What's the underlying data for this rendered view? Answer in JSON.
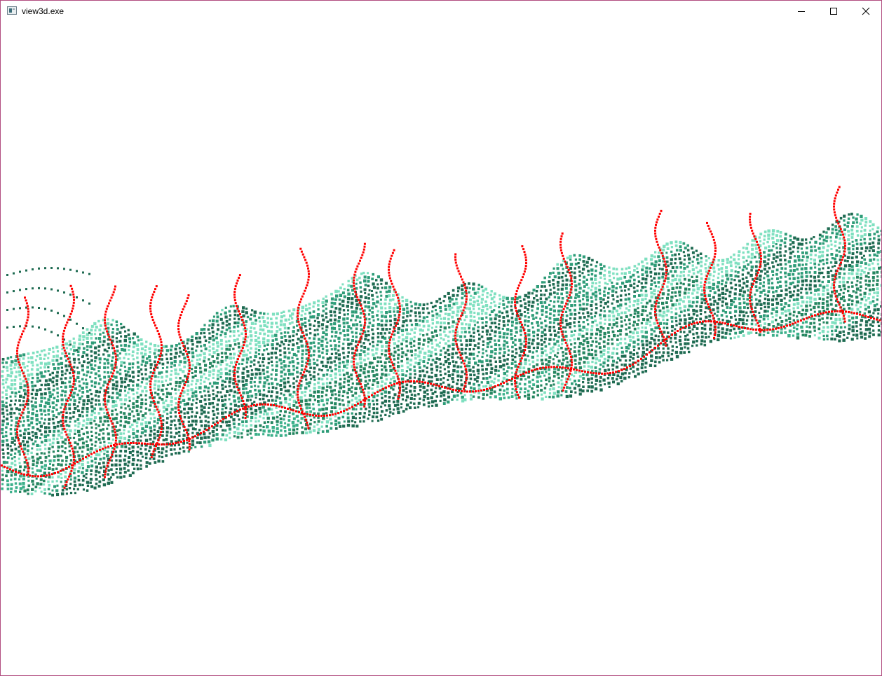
{
  "window": {
    "title": "view3d.exe",
    "border_color": "#b14d80",
    "icon": "app-window-icon",
    "controls": [
      {
        "name": "minimize",
        "icon": "minimize-icon"
      },
      {
        "name": "maximize",
        "icon": "maximize-icon"
      },
      {
        "name": "close",
        "icon": "close-icon"
      }
    ]
  },
  "scene": {
    "background": "#ffffff",
    "surface_color_dark": "#1f6b52",
    "surface_color_mid": "#2e9c78",
    "surface_color_light": "#7fe0c0",
    "trace_color": "#ff0000",
    "description_icon": "3d-point-cloud-view"
  }
}
